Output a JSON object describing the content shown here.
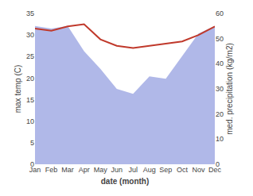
{
  "chart_data": {
    "type": "line",
    "xlabel": "date (month)",
    "ylabel": "max temp (C)",
    "y2label": "med. precipitation (kg/m2)",
    "categories": [
      "Jan",
      "Feb",
      "Mar",
      "Apr",
      "May",
      "Jun",
      "Jul",
      "Aug",
      "Sep",
      "Oct",
      "Nov",
      "Dec"
    ],
    "series": [
      {
        "type": "area",
        "axis": "y2",
        "color": "#b0b8e8",
        "values": [
          55,
          54,
          55,
          45,
          38,
          30,
          28,
          35,
          34,
          43,
          52,
          55
        ]
      },
      {
        "type": "line",
        "axis": "y",
        "color": "#c0392b",
        "values": [
          31.5,
          31.0,
          32.0,
          32.5,
          29.0,
          27.5,
          27.0,
          27.5,
          28.0,
          28.5,
          30.0,
          32.0
        ]
      }
    ],
    "ylim": [
      0,
      35
    ],
    "yticks": [
      0,
      5,
      10,
      15,
      20,
      25,
      30,
      35
    ],
    "y2lim": [
      0,
      60
    ],
    "y2ticks": [
      0,
      10,
      20,
      30,
      40,
      50,
      60
    ],
    "grid": false
  }
}
